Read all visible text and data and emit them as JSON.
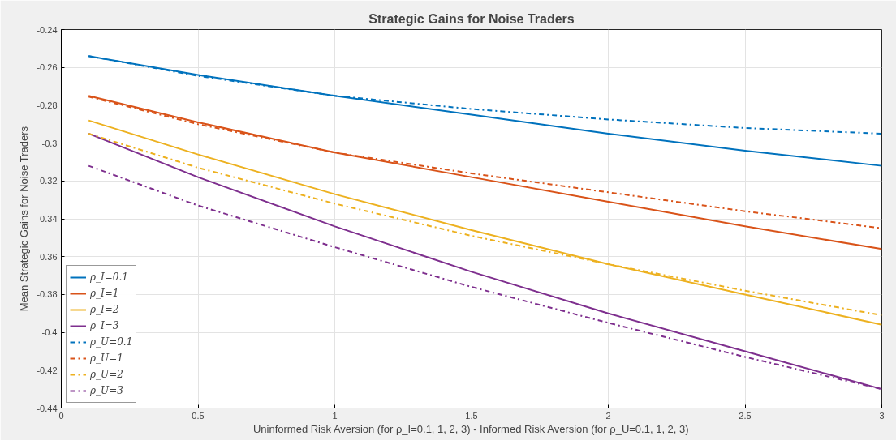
{
  "chart_data": {
    "type": "line",
    "title": "Strategic Gains for Noise Traders",
    "xlabel": "Uninformed Risk Aversion (for ρ_I=0.1, 1, 2, 3) - Informed Risk Aversion (for ρ_U=0.1, 1, 2, 3)",
    "ylabel": "Mean Strategic Gains for Noise Traders",
    "x": [
      0.1,
      0.5,
      1,
      1.5,
      2,
      2.5,
      3
    ],
    "series": [
      {
        "name": "ρ_I=0.1",
        "color": "#0072bd",
        "line_style": "solid",
        "values": [
          -0.254,
          -0.264,
          -0.275,
          -0.285,
          -0.295,
          -0.304,
          -0.312
        ]
      },
      {
        "name": "ρ_I=1",
        "color": "#d95319",
        "line_style": "solid",
        "values": [
          -0.275,
          -0.289,
          -0.305,
          -0.318,
          -0.331,
          -0.344,
          -0.356
        ]
      },
      {
        "name": "ρ_I=2",
        "color": "#edb120",
        "line_style": "solid",
        "values": [
          -0.288,
          -0.306,
          -0.327,
          -0.346,
          -0.364,
          -0.38,
          -0.396
        ]
      },
      {
        "name": "ρ_I=3",
        "color": "#7e2f8e",
        "line_style": "solid",
        "values": [
          -0.295,
          -0.318,
          -0.344,
          -0.368,
          -0.39,
          -0.41,
          -0.43
        ]
      },
      {
        "name": "ρ_U=0.1",
        "color": "#0072bd",
        "line_style": "dashdot",
        "values": [
          -0.254,
          -0.2645,
          -0.275,
          -0.282,
          -0.2875,
          -0.292,
          -0.295
        ]
      },
      {
        "name": "ρ_U=1",
        "color": "#d95319",
        "line_style": "dashdot",
        "values": [
          -0.2755,
          -0.29,
          -0.305,
          -0.316,
          -0.326,
          -0.336,
          -0.345
        ]
      },
      {
        "name": "ρ_U=2",
        "color": "#edb120",
        "line_style": "dashdot",
        "values": [
          -0.295,
          -0.313,
          -0.332,
          -0.349,
          -0.364,
          -0.378,
          -0.391
        ]
      },
      {
        "name": "ρ_U=3",
        "color": "#7e2f8e",
        "line_style": "dashdot",
        "values": [
          -0.312,
          -0.333,
          -0.355,
          -0.376,
          -0.395,
          -0.413,
          -0.43
        ]
      }
    ],
    "xlim": [
      0,
      3
    ],
    "xticks": [
      0,
      0.5,
      1,
      1.5,
      2,
      2.5,
      3
    ],
    "ylim": [
      -0.44,
      -0.24
    ],
    "yticks": [
      -0.44,
      -0.42,
      -0.4,
      -0.38,
      -0.36,
      -0.34,
      -0.32,
      -0.3,
      -0.28,
      -0.26,
      -0.24
    ],
    "grid": true,
    "legend": "bottom left"
  }
}
